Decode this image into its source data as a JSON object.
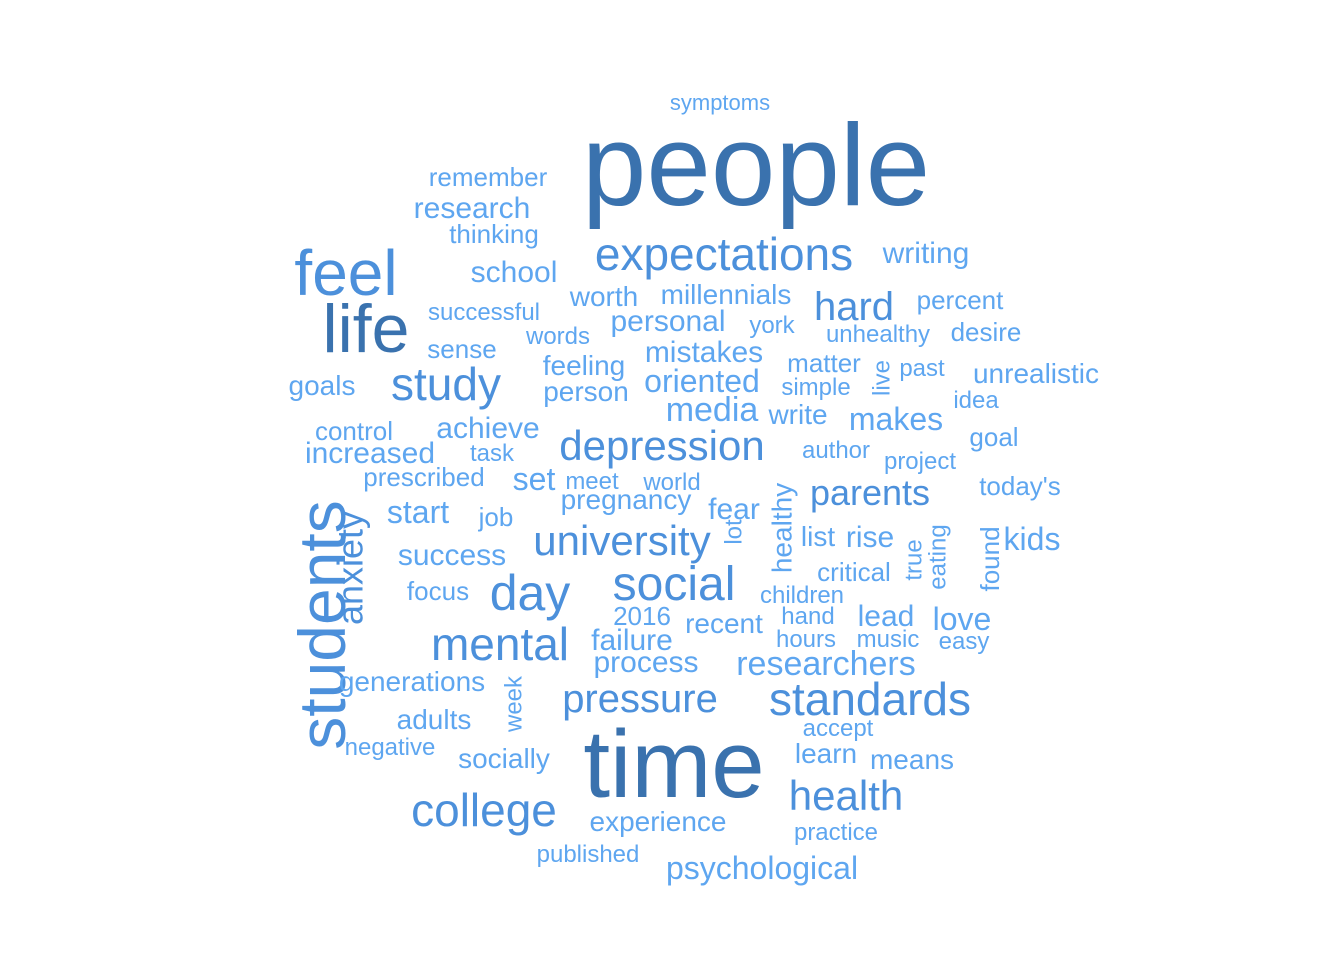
{
  "colors": {
    "dark": "#3a72ae",
    "mid": "#4c90db",
    "light": "#5ea6f0"
  },
  "words": [
    {
      "text": "people",
      "tier": "dark"
    },
    {
      "text": "time",
      "tier": "dark"
    },
    {
      "text": "life",
      "tier": "dark"
    },
    {
      "text": "feel",
      "tier": "mid"
    },
    {
      "text": "students",
      "tier": "mid"
    },
    {
      "text": "expectations",
      "tier": "mid"
    },
    {
      "text": "study",
      "tier": "mid"
    },
    {
      "text": "hard",
      "tier": "mid"
    },
    {
      "text": "depression",
      "tier": "mid"
    },
    {
      "text": "social",
      "tier": "mid"
    },
    {
      "text": "day",
      "tier": "mid"
    },
    {
      "text": "mental",
      "tier": "mid"
    },
    {
      "text": "university",
      "tier": "mid"
    },
    {
      "text": "standards",
      "tier": "mid"
    },
    {
      "text": "college",
      "tier": "mid"
    },
    {
      "text": "health",
      "tier": "mid"
    },
    {
      "text": "pressure",
      "tier": "mid"
    },
    {
      "text": "anxiety",
      "tier": "mid"
    },
    {
      "text": "parents",
      "tier": "mid"
    },
    {
      "text": "symptoms",
      "tier": "light"
    },
    {
      "text": "remember",
      "tier": "light"
    },
    {
      "text": "research",
      "tier": "light"
    },
    {
      "text": "thinking",
      "tier": "light"
    },
    {
      "text": "school",
      "tier": "light"
    },
    {
      "text": "writing",
      "tier": "light"
    },
    {
      "text": "worth",
      "tier": "light"
    },
    {
      "text": "millennials",
      "tier": "light"
    },
    {
      "text": "percent",
      "tier": "light"
    },
    {
      "text": "successful",
      "tier": "light"
    },
    {
      "text": "personal",
      "tier": "light"
    },
    {
      "text": "york",
      "tier": "light"
    },
    {
      "text": "unhealthy",
      "tier": "light"
    },
    {
      "text": "desire",
      "tier": "light"
    },
    {
      "text": "words",
      "tier": "light"
    },
    {
      "text": "sense",
      "tier": "light"
    },
    {
      "text": "feeling",
      "tier": "light"
    },
    {
      "text": "mistakes",
      "tier": "light"
    },
    {
      "text": "matter",
      "tier": "light"
    },
    {
      "text": "live",
      "tier": "light"
    },
    {
      "text": "past",
      "tier": "light"
    },
    {
      "text": "unrealistic",
      "tier": "light"
    },
    {
      "text": "goals",
      "tier": "light"
    },
    {
      "text": "person",
      "tier": "light"
    },
    {
      "text": "oriented",
      "tier": "light"
    },
    {
      "text": "simple",
      "tier": "light"
    },
    {
      "text": "idea",
      "tier": "light"
    },
    {
      "text": "media",
      "tier": "light"
    },
    {
      "text": "write",
      "tier": "light"
    },
    {
      "text": "makes",
      "tier": "light"
    },
    {
      "text": "control",
      "tier": "light"
    },
    {
      "text": "achieve",
      "tier": "light"
    },
    {
      "text": "goal",
      "tier": "light"
    },
    {
      "text": "increased",
      "tier": "light"
    },
    {
      "text": "task",
      "tier": "light"
    },
    {
      "text": "author",
      "tier": "light"
    },
    {
      "text": "project",
      "tier": "light"
    },
    {
      "text": "prescribed",
      "tier": "light"
    },
    {
      "text": "set",
      "tier": "light"
    },
    {
      "text": "meet",
      "tier": "light"
    },
    {
      "text": "world",
      "tier": "light"
    },
    {
      "text": "today's",
      "tier": "light"
    },
    {
      "text": "pregnancy",
      "tier": "light"
    },
    {
      "text": "fear",
      "tier": "light"
    },
    {
      "text": "start",
      "tier": "light"
    },
    {
      "text": "job",
      "tier": "light"
    },
    {
      "text": "healthy",
      "tier": "light"
    },
    {
      "text": "lot",
      "tier": "light"
    },
    {
      "text": "list",
      "tier": "light"
    },
    {
      "text": "rise",
      "tier": "light"
    },
    {
      "text": "true",
      "tier": "light"
    },
    {
      "text": "eating",
      "tier": "light"
    },
    {
      "text": "found",
      "tier": "light"
    },
    {
      "text": "kids",
      "tier": "light"
    },
    {
      "text": "success",
      "tier": "light"
    },
    {
      "text": "critical",
      "tier": "light"
    },
    {
      "text": "focus",
      "tier": "light"
    },
    {
      "text": "children",
      "tier": "light"
    },
    {
      "text": "2016",
      "tier": "light"
    },
    {
      "text": "hand",
      "tier": "light"
    },
    {
      "text": "lead",
      "tier": "light"
    },
    {
      "text": "love",
      "tier": "light"
    },
    {
      "text": "recent",
      "tier": "light"
    },
    {
      "text": "failure",
      "tier": "light"
    },
    {
      "text": "hours",
      "tier": "light"
    },
    {
      "text": "music",
      "tier": "light"
    },
    {
      "text": "easy",
      "tier": "light"
    },
    {
      "text": "process",
      "tier": "light"
    },
    {
      "text": "researchers",
      "tier": "light"
    },
    {
      "text": "generations",
      "tier": "light"
    },
    {
      "text": "week",
      "tier": "light"
    },
    {
      "text": "adults",
      "tier": "light"
    },
    {
      "text": "accept",
      "tier": "light"
    },
    {
      "text": "negative",
      "tier": "light"
    },
    {
      "text": "learn",
      "tier": "light"
    },
    {
      "text": "socially",
      "tier": "light"
    },
    {
      "text": "means",
      "tier": "light"
    },
    {
      "text": "experience",
      "tier": "light"
    },
    {
      "text": "practice",
      "tier": "light"
    },
    {
      "text": "published",
      "tier": "light"
    },
    {
      "text": "psychological",
      "tier": "light"
    }
  ]
}
